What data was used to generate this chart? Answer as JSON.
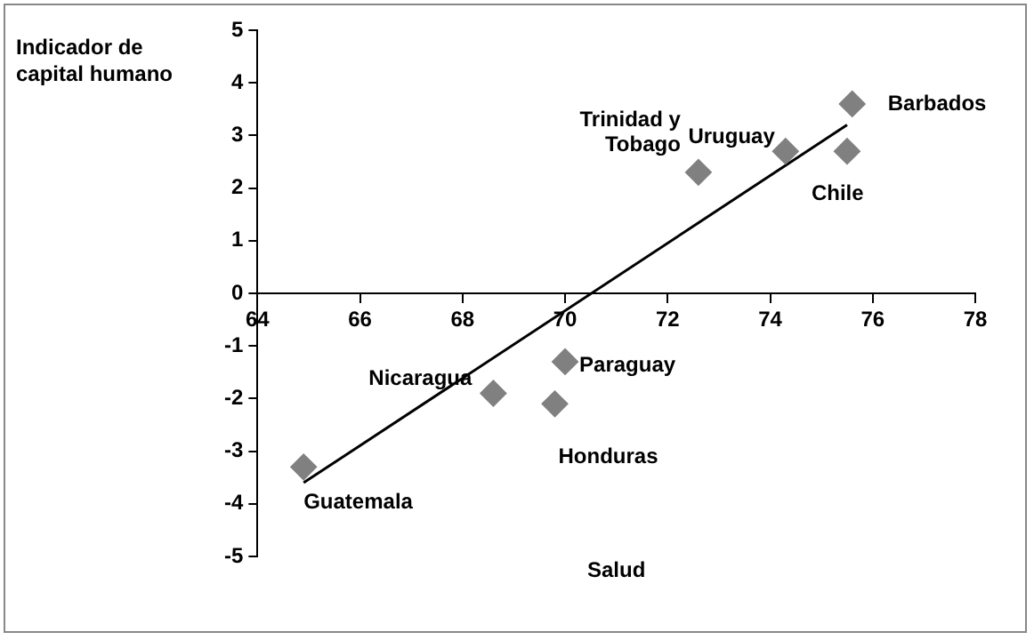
{
  "chart_data": {
    "type": "scatter",
    "xlabel": "Salud",
    "ylabel": "Indicador de capital humano",
    "xlim": [
      64,
      78
    ],
    "xticks": [
      64,
      66,
      68,
      70,
      72,
      74,
      76,
      78
    ],
    "ylim": [
      -5,
      5
    ],
    "yticks": [
      -5,
      -4,
      -3,
      -2,
      -1,
      0,
      1,
      2,
      3,
      4,
      5
    ],
    "grid": false,
    "legend": false,
    "series": [
      {
        "type": "scatter",
        "marker": "diamond",
        "color": "#808080",
        "x": [
          64.9,
          68.6,
          69.8,
          70.0,
          72.6,
          74.3,
          75.5,
          75.6
        ],
        "values": [
          -3.3,
          -1.9,
          -2.1,
          -1.3,
          2.3,
          2.7,
          2.7,
          3.6
        ]
      },
      {
        "type": "line",
        "marker": "none",
        "color": "#000000",
        "x": [
          64.9,
          75.5
        ],
        "values": [
          -3.6,
          3.2
        ]
      }
    ],
    "annotations": [
      {
        "text": "Guatemala",
        "x": 64.9,
        "y": -3.3
      },
      {
        "text": "Nicaragua",
        "x": 68.6,
        "y": -1.9
      },
      {
        "text": "Honduras",
        "x": 69.8,
        "y": -2.1
      },
      {
        "text": "Paraguay",
        "x": 70.0,
        "y": -1.3
      },
      {
        "text": "Trinidad y\nTobago",
        "x": 72.6,
        "y": 2.3
      },
      {
        "text": "Uruguay",
        "x": 74.3,
        "y": 2.7
      },
      {
        "text": "Chile",
        "x": 75.5,
        "y": 2.7
      },
      {
        "text": "Barbados",
        "x": 75.6,
        "y": 3.6
      }
    ]
  }
}
